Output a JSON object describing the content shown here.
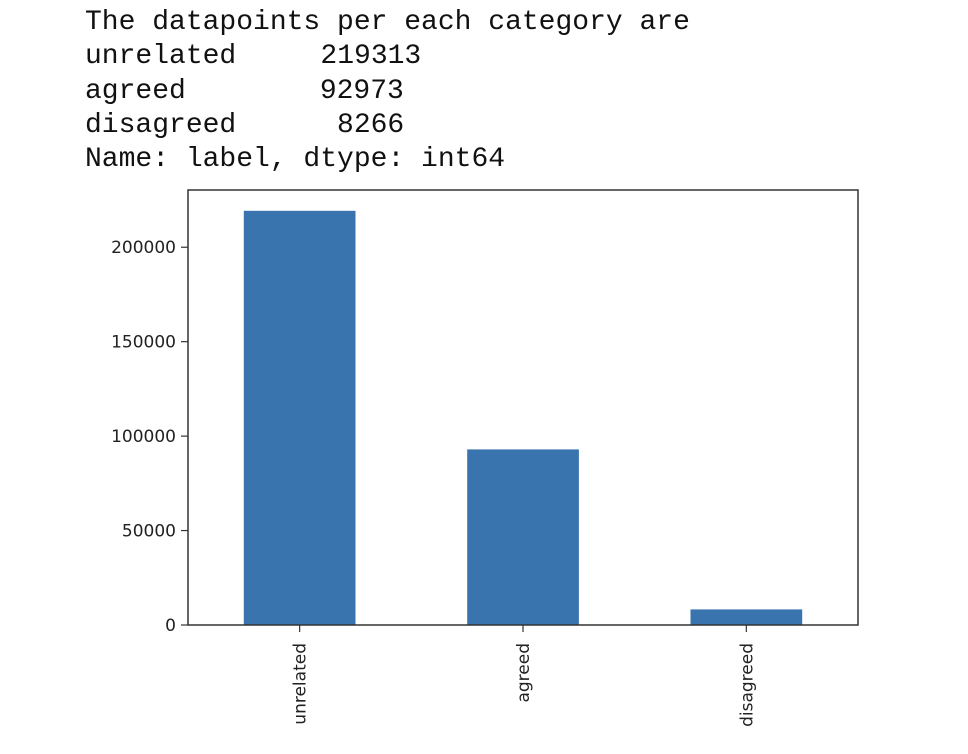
{
  "output": {
    "header": "The datapoints per each category are",
    "rows": [
      {
        "label": "unrelated",
        "value": "219313"
      },
      {
        "label": "agreed",
        "value": "92973"
      },
      {
        "label": "disagreed",
        "value": "8266"
      }
    ],
    "footer": "Name: label, dtype: int64"
  },
  "chart_data": {
    "type": "bar",
    "categories": [
      "unrelated",
      "agreed",
      "disagreed"
    ],
    "values": [
      219313,
      92973,
      8266
    ],
    "title": "",
    "xlabel": "",
    "ylabel": "",
    "ylim": [
      0,
      230300
    ],
    "yticks": [
      0,
      50000,
      100000,
      150000,
      200000
    ],
    "grid": false,
    "legend": "none",
    "bar_color": "#3a74ae",
    "axis_color": "#333333"
  }
}
